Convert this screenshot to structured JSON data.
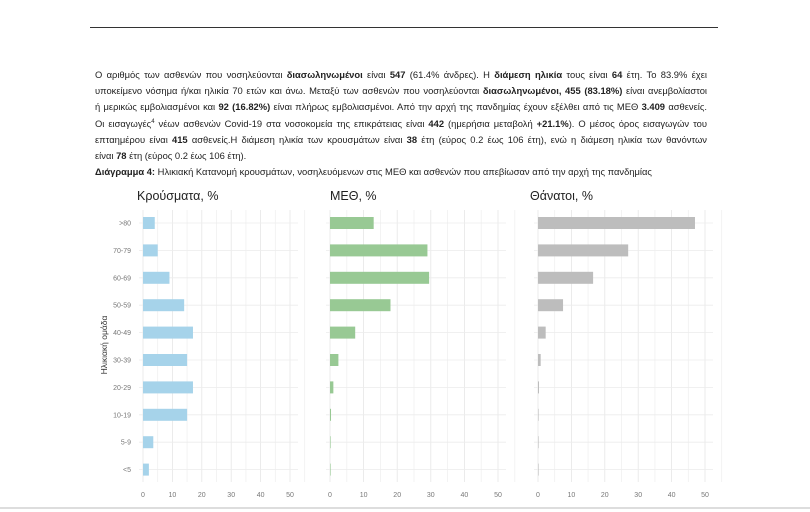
{
  "paragraph": {
    "lines": [
      [
        {
          "t": "Ο αριθμός των ασθενών που νοσηλεύονται "
        },
        {
          "t": "διασωληνωμένοι",
          "b": true
        },
        {
          "t": " είναι "
        },
        {
          "t": "547",
          "b": true
        },
        {
          "t": " (61.4% άνδρες).  Η "
        },
        {
          "t": "διάμεση ηλικία",
          "b": true
        },
        {
          "t": " τους είναι "
        },
        {
          "t": "64",
          "b": true
        },
        {
          "t": " έτη.  Το 83.9% έχει"
        }
      ],
      [
        {
          "t": "υποκείμενο νόσημα ή/και ηλικία 70 ετών και άνω. Μεταξύ των ασθενών που νοσηλεύονται "
        },
        {
          "t": "διασωληνωμένοι, 455 (83.18%)",
          "b": true
        },
        {
          "t": " είναι ανεμβολίαστοι"
        }
      ],
      [
        {
          "t": "ή μερικώς εμβολιασμένοι και "
        },
        {
          "t": "92 (16.82%)",
          "b": true
        },
        {
          "t": " είναι πλήρως εμβολιασμένοι. Από την αρχή της πανδημίας έχουν εξέλθει από τις ΜΕΘ "
        },
        {
          "t": "3.409",
          "b": true
        },
        {
          "t": " ασθενείς."
        }
      ],
      [
        {
          "t": "Οι εισαγωγές"
        },
        {
          "t": "4",
          "sup": true
        },
        {
          "t": " νέων ασθενών Covid-19 στα νοσοκομεία της επικράτειας είναι "
        },
        {
          "t": "442",
          "b": true
        },
        {
          "t": " (ημερήσια μεταβολή "
        },
        {
          "t": "+21.1%",
          "b": true
        },
        {
          "t": ").  Ο μέσος όρος εισαγωγών του"
        }
      ],
      [
        {
          "t": "επταημέρου είναι "
        },
        {
          "t": "415",
          "b": true
        },
        {
          "t": " ασθενείς.Η διάμεση ηλικία των κρουσμάτων είναι "
        },
        {
          "t": "38",
          "b": true
        },
        {
          "t": " έτη (εύρος 0.2 έως 106 έτη), ενώ η διάμεση ηλικία των θανόντων"
        }
      ],
      [
        {
          "t": "είναι "
        },
        {
          "t": "78",
          "b": true
        },
        {
          "t": " έτη (εύρος 0.2 έως 106 έτη)."
        }
      ],
      [
        {
          "t": "Διάγραμμα 4:",
          "b": true
        },
        {
          "t": " Ηλικιακή Κατανομή κρουσμάτων, νοσηλευόμενων στις ΜΕΘ και ασθενών που απεβίωσαν από την αρχή της πανδημίας"
        }
      ]
    ]
  },
  "chart_data": [
    {
      "type": "bar",
      "orientation": "horizontal",
      "title": "Κρούσματα, %",
      "ylabel": "Ηλικιακή ομάδα",
      "xlabel": "",
      "color": "#a6d3ea",
      "categories": [
        ">80",
        "70-79",
        "60-69",
        "50-59",
        "40-49",
        "30-39",
        "20-29",
        "10-19",
        "5-9",
        "<5"
      ],
      "values": [
        4,
        5,
        9,
        14,
        17,
        15,
        17,
        15,
        3.5,
        2
      ],
      "xlim": [
        0,
        50
      ],
      "xticks": [
        "0",
        "10",
        "20",
        "30",
        "40",
        "50"
      ],
      "grid": true
    },
    {
      "type": "bar",
      "orientation": "horizontal",
      "title": "ΜΕΘ, %",
      "xlabel": "",
      "color": "#98c994",
      "categories": [
        ">80",
        "70-79",
        "60-69",
        "50-59",
        "40-49",
        "30-39",
        "20-29",
        "10-19",
        "5-9",
        "<5"
      ],
      "values": [
        13,
        29,
        29.5,
        18,
        7.5,
        2.5,
        1,
        0.3,
        0.1,
        0.1
      ],
      "xlim": [
        0,
        50
      ],
      "xticks": [
        "0",
        "10",
        "20",
        "30",
        "40",
        "50"
      ],
      "grid": true
    },
    {
      "type": "bar",
      "orientation": "horizontal",
      "title": "Θάνατοι, %",
      "xlabel": "",
      "color": "#bdbdbd",
      "categories": [
        ">80",
        "70-79",
        "60-69",
        "50-59",
        "40-49",
        "30-39",
        "20-29",
        "10-19",
        "5-9",
        "<5"
      ],
      "values": [
        47,
        27,
        16.5,
        7.5,
        2.3,
        0.8,
        0.3,
        0.1,
        0,
        0.1
      ],
      "xlim": [
        0,
        50
      ],
      "xticks": [
        "0",
        "10",
        "20",
        "30",
        "40",
        "50"
      ],
      "grid": true
    }
  ]
}
